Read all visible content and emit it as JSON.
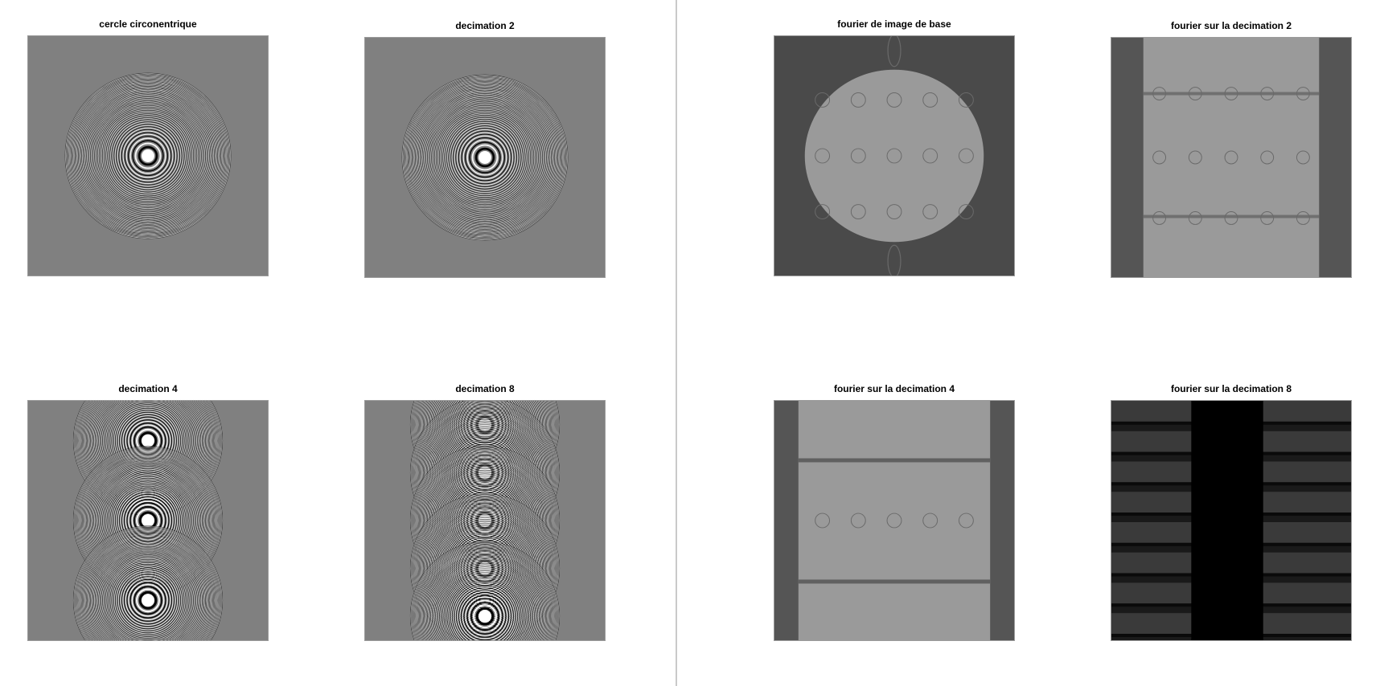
{
  "figures": [
    {
      "panels": [
        {
          "title": "cercle circonentrique",
          "kind": "rings",
          "period": 1
        },
        {
          "title": "decimation 2",
          "kind": "rings",
          "period": 1
        },
        {
          "title": "decimation 4",
          "kind": "rings",
          "period": 3
        },
        {
          "title": "decimation 8",
          "kind": "rings",
          "period": 5
        }
      ]
    },
    {
      "panels": [
        {
          "title": "fourier de image de base",
          "kind": "spectrum",
          "variant": "disk",
          "background": "#4a4a4a"
        },
        {
          "title": "fourier sur la decimation 2",
          "kind": "spectrum",
          "variant": "band2",
          "background": "#555555"
        },
        {
          "title": "fourier sur la decimation 4",
          "kind": "spectrum",
          "variant": "band4",
          "background": "#555555"
        },
        {
          "title": "fourier sur la decimation 8",
          "kind": "spectrum",
          "variant": "band8",
          "background": "#1a1a1a"
        }
      ]
    }
  ],
  "colors": {
    "ring_dark": "#000000",
    "ring_light": "#ffffff",
    "ring_background": "#808080",
    "spectrum_light": "#9a9a9a",
    "divider": "#c9c9c9"
  }
}
